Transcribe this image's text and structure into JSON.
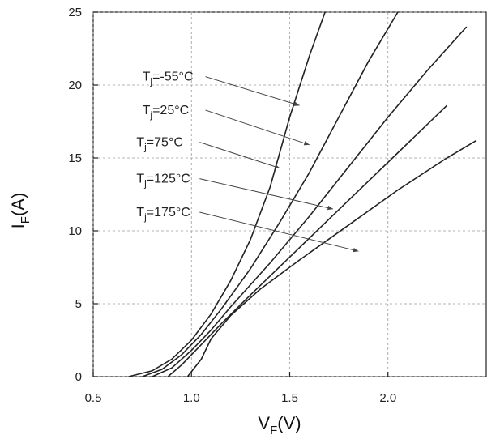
{
  "chart_data": {
    "type": "line",
    "xlabel": "V_F(V)",
    "ylabel": "I_F(A)",
    "xlim": [
      0.5,
      2.5
    ],
    "ylim": [
      0,
      25
    ],
    "x_ticks": [
      0.5,
      1.0,
      1.5,
      2.0
    ],
    "x_tick_labels": [
      "0.5",
      "1.0",
      "1.5",
      "2.0"
    ],
    "y_ticks": [
      0,
      5,
      10,
      15,
      20,
      25
    ],
    "y_tick_labels": [
      "0",
      "5",
      "10",
      "15",
      "20",
      "25"
    ],
    "grid": true,
    "series": [
      {
        "name": "Tj=-55°C",
        "label_parts": [
          "T",
          "j",
          "=-55°C"
        ],
        "points": [
          [
            0.68,
            0
          ],
          [
            0.8,
            0.4
          ],
          [
            0.9,
            1.2
          ],
          [
            1.0,
            2.5
          ],
          [
            1.1,
            4.3
          ],
          [
            1.2,
            6.6
          ],
          [
            1.3,
            9.4
          ],
          [
            1.4,
            13.0
          ],
          [
            1.5,
            17.8
          ],
          [
            1.6,
            22.0
          ],
          [
            1.68,
            25.0
          ]
        ]
      },
      {
        "name": "Tj=25°C",
        "label_parts": [
          "T",
          "j",
          "=25°C"
        ],
        "points": [
          [
            0.75,
            0
          ],
          [
            0.85,
            0.5
          ],
          [
            0.95,
            1.5
          ],
          [
            1.05,
            2.9
          ],
          [
            1.15,
            4.6
          ],
          [
            1.3,
            7.4
          ],
          [
            1.45,
            10.6
          ],
          [
            1.6,
            14.0
          ],
          [
            1.75,
            17.8
          ],
          [
            1.9,
            21.6
          ],
          [
            2.05,
            25.0
          ]
        ]
      },
      {
        "name": "Tj=75°C",
        "label_parts": [
          "T",
          "j",
          "=75°C"
        ],
        "points": [
          [
            0.8,
            0
          ],
          [
            0.9,
            0.6
          ],
          [
            1.0,
            1.8
          ],
          [
            1.1,
            3.2
          ],
          [
            1.2,
            4.8
          ],
          [
            1.4,
            7.8
          ],
          [
            1.6,
            11.0
          ],
          [
            1.8,
            14.4
          ],
          [
            2.0,
            17.8
          ],
          [
            2.2,
            21.0
          ],
          [
            2.4,
            24.0
          ]
        ]
      },
      {
        "name": "Tj=125°C",
        "label_parts": [
          "T",
          "j",
          "=125°C"
        ],
        "points": [
          [
            0.88,
            0
          ],
          [
            0.95,
            0.8
          ],
          [
            1.05,
            2.2
          ],
          [
            1.15,
            3.6
          ],
          [
            1.3,
            5.6
          ],
          [
            1.5,
            8.2
          ],
          [
            1.7,
            10.8
          ],
          [
            1.9,
            13.4
          ],
          [
            2.1,
            16.0
          ],
          [
            2.3,
            18.6
          ]
        ]
      },
      {
        "name": "Tj=175°C",
        "label_parts": [
          "T",
          "j",
          "=175°C"
        ],
        "points": [
          [
            0.98,
            0
          ],
          [
            1.05,
            1.2
          ],
          [
            1.1,
            2.6
          ],
          [
            1.2,
            4.2
          ],
          [
            1.35,
            6.0
          ],
          [
            1.55,
            8.0
          ],
          [
            1.8,
            10.4
          ],
          [
            2.05,
            12.8
          ],
          [
            2.3,
            15.0
          ],
          [
            2.45,
            16.2
          ]
        ]
      }
    ],
    "annotations": [
      {
        "series": 0,
        "label_xy": [
          0.75,
          20.3
        ],
        "arrow_to": [
          1.55,
          18.6
        ]
      },
      {
        "series": 1,
        "label_xy": [
          0.75,
          18.0
        ],
        "arrow_to": [
          1.6,
          15.9
        ]
      },
      {
        "series": 2,
        "label_xy": [
          0.72,
          15.8
        ],
        "arrow_to": [
          1.45,
          14.3
        ]
      },
      {
        "series": 3,
        "label_xy": [
          0.72,
          13.3
        ],
        "arrow_to": [
          1.72,
          11.5
        ]
      },
      {
        "series": 4,
        "label_xy": [
          0.72,
          11.0
        ],
        "arrow_to": [
          1.85,
          8.6
        ]
      }
    ],
    "line_color": "#222222"
  }
}
